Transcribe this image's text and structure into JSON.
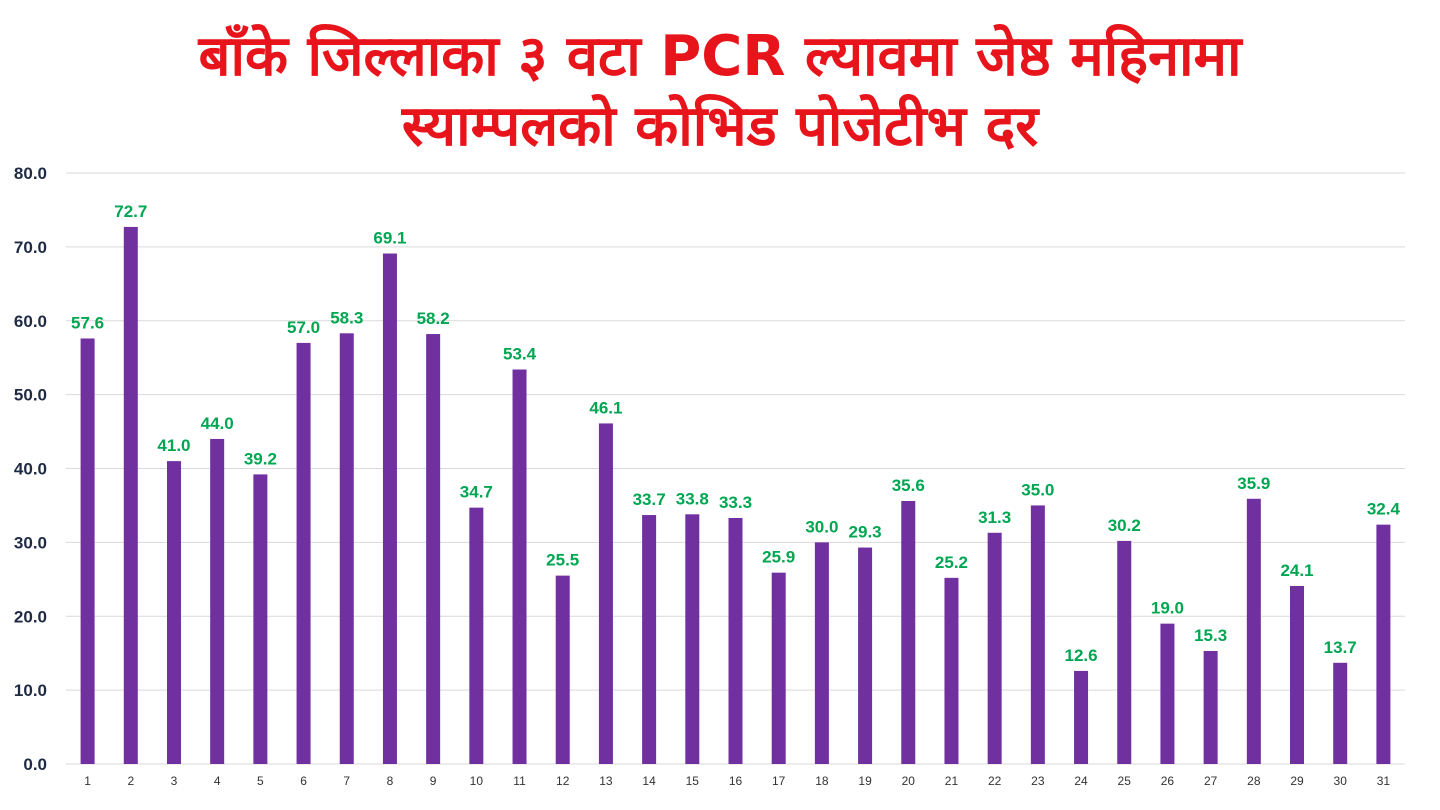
{
  "chart_data": {
    "type": "bar",
    "title_line1": "बाँके जिल्लाका ३ वटा PCR ल्यावमा जेष्ठ महिनामा",
    "title_line2": "स्याम्पलको कोभिड पोजेटीभ दर",
    "categories": [
      "1",
      "2",
      "3",
      "4",
      "5",
      "6",
      "7",
      "8",
      "9",
      "10",
      "11",
      "12",
      "13",
      "14",
      "15",
      "16",
      "17",
      "18",
      "19",
      "20",
      "21",
      "22",
      "23",
      "24",
      "25",
      "26",
      "27",
      "28",
      "29",
      "30",
      "31"
    ],
    "values": [
      57.6,
      72.7,
      41.0,
      44.0,
      39.2,
      57.0,
      58.3,
      69.1,
      58.2,
      34.7,
      53.4,
      25.5,
      46.1,
      33.7,
      33.8,
      33.3,
      25.9,
      30.0,
      29.3,
      35.6,
      25.2,
      31.3,
      35.0,
      12.6,
      30.2,
      19.0,
      15.3,
      35.9,
      24.1,
      13.7,
      32.4
    ],
    "value_labels": [
      "57.6",
      "72.7",
      "41.0",
      "44.0",
      "39.2",
      "57.0",
      "58.3",
      "69.1",
      "58.2",
      "34.7",
      "53.4",
      "25.5",
      "46.1",
      "33.7",
      "33.8",
      "33.3",
      "25.9",
      "30.0",
      "29.3",
      "35.6",
      "25.2",
      "31.3",
      "35.0",
      "12.6",
      "30.2",
      "19.0",
      "15.3",
      "35.9",
      "24.1",
      "13.7",
      "32.4"
    ],
    "y_ticks": [
      "0.0",
      "10.0",
      "20.0",
      "30.0",
      "40.0",
      "50.0",
      "60.0",
      "70.0",
      "80.0"
    ],
    "ylim": [
      0,
      80
    ],
    "xlabel": "",
    "ylabel": "",
    "grid": true,
    "legend": "none",
    "bar_color": "#7030a0",
    "label_color": "#00a651",
    "title_color": "#e8141b",
    "grid_color": "#d9d9d9"
  }
}
